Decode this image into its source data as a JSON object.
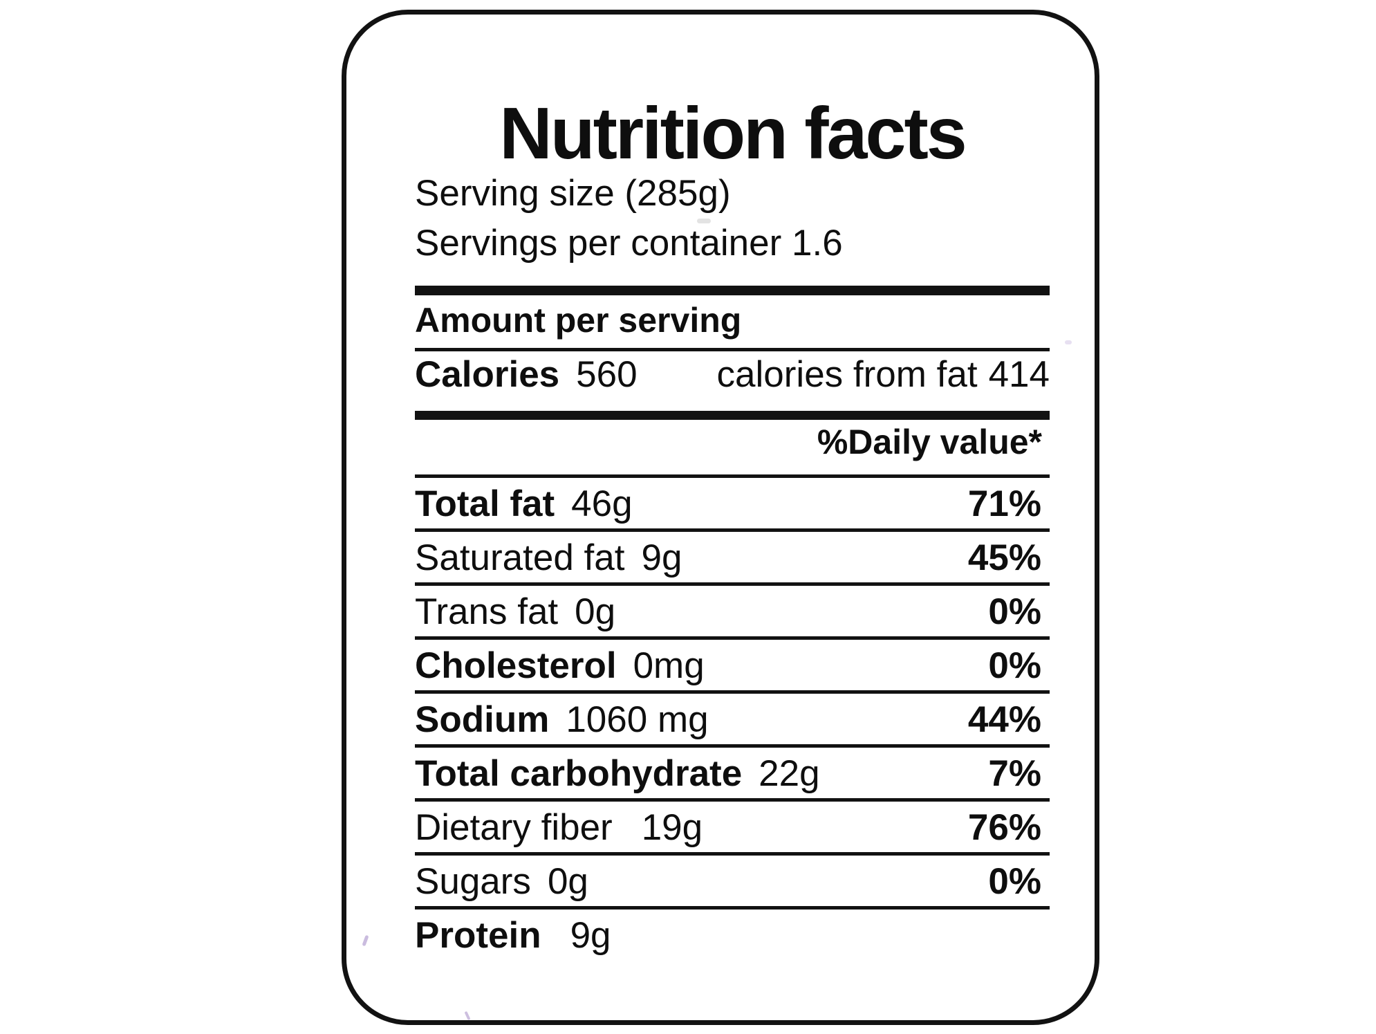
{
  "label": {
    "title": "Nutrition facts",
    "serving_size": "Serving size (285g)",
    "servings_per_container": "Servings per container 1.6",
    "amount_per_serving": "Amount per serving",
    "calories": {
      "label": "Calories",
      "value": "560",
      "from_fat_label": "calories from fat",
      "from_fat_value": "414"
    },
    "daily_value_header": "%Daily value*",
    "rows": [
      {
        "name": "Total fat",
        "amount": "46g",
        "dv": "71%"
      },
      {
        "name": "Saturated fat",
        "amount": "9g",
        "dv": "45%"
      },
      {
        "name": "Trans fat",
        "amount": "0g",
        "dv": "0%"
      },
      {
        "name": "Cholesterol",
        "amount": "0mg",
        "dv": "0%"
      },
      {
        "name": "Sodium",
        "amount": "1060 mg",
        "dv": "44%"
      },
      {
        "name": "Total carbohydrate",
        "amount": "22g",
        "dv": "7%"
      },
      {
        "name": "Dietary fiber",
        "amount": "19g",
        "dv": "76%"
      },
      {
        "name": "Sugars",
        "amount": "0g",
        "dv": "0%"
      },
      {
        "name": "Protein",
        "amount": "9g",
        "dv": ""
      }
    ],
    "colors": {
      "text": "#0e0e0e",
      "border": "#121212",
      "background": "#ffffff"
    }
  }
}
